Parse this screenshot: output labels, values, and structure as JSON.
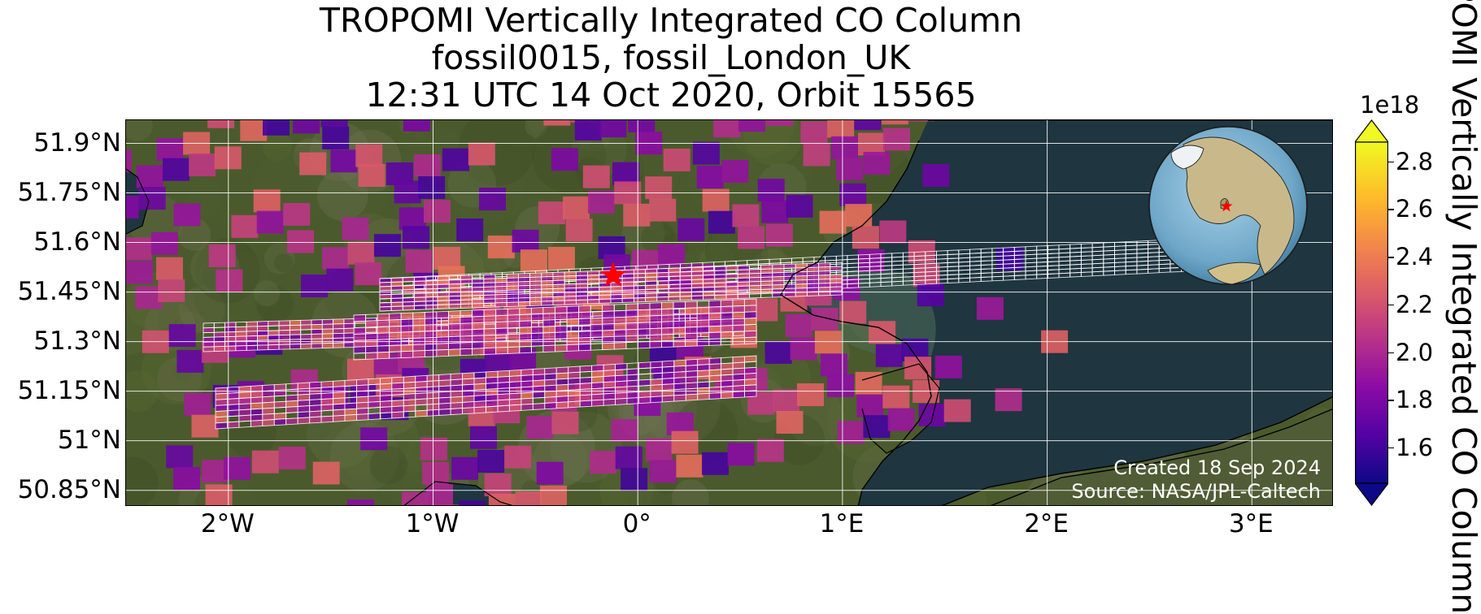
{
  "title": {
    "line1": "TROPOMI Vertically Integrated CO Column",
    "line2": "fossil0015, fossil_London_UK",
    "line3": "12:31 UTC 14 Oct 2020, Orbit 15565"
  },
  "map": {
    "lon_range": [
      -2.5,
      3.4
    ],
    "lat_range": [
      50.8,
      51.97
    ],
    "lat_labels": [
      "51.9°N",
      "51.75°N",
      "51.6°N",
      "51.45°N",
      "51.3°N",
      "51.15°N",
      "51°N",
      "50.85°N"
    ],
    "lon_labels": [
      "2°W",
      "1°W",
      "0°",
      "1°E",
      "2°E",
      "3°E"
    ],
    "site_marker": {
      "lon": -0.12,
      "lat": 51.5,
      "color": "#ff0000"
    },
    "sea_color": "#1f3540",
    "land_color": "#4b5a2c",
    "grid_color": "#ffffff",
    "credit_line1": "Created 18 Sep 2024",
    "credit_line2": "Source: NASA/JPL-Caltech"
  },
  "inset_globe": {
    "icon": "globe-icon",
    "marker_color": "#ff0000"
  },
  "colorbar": {
    "colormap": "plasma",
    "exponent_label": "1e18",
    "label": "TROPOMI Vertically Integrated CO Column",
    "ticks": [
      "1.6",
      "1.8",
      "2.0",
      "2.2",
      "2.4",
      "2.6",
      "2.8"
    ],
    "range": [
      1.45,
      2.88
    ],
    "extend": "both"
  }
}
